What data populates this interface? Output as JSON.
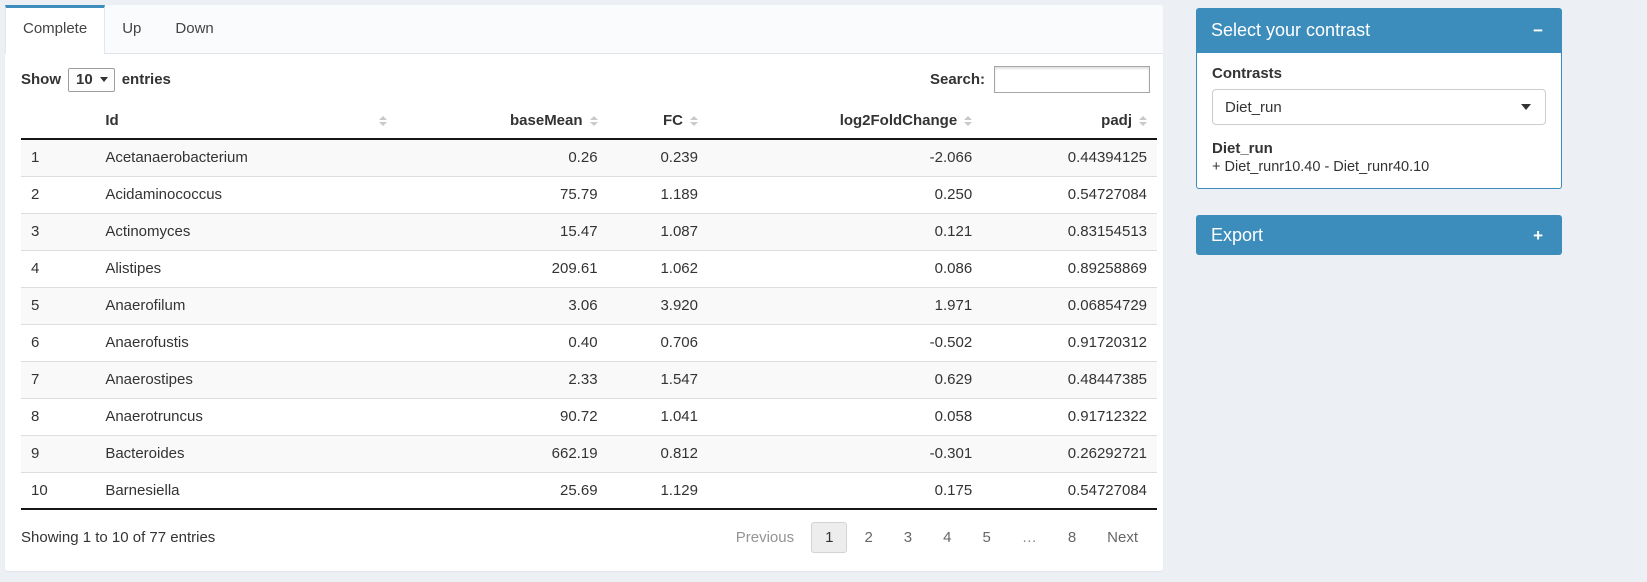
{
  "tabs": [
    {
      "label": "Complete",
      "active": true
    },
    {
      "label": "Up",
      "active": false
    },
    {
      "label": "Down",
      "active": false
    }
  ],
  "length_control": {
    "prefix": "Show",
    "value": "10",
    "suffix": "entries"
  },
  "search": {
    "label": "Search:",
    "value": ""
  },
  "table": {
    "columns": [
      "",
      "Id",
      "baseMean",
      "FC",
      "log2FoldChange",
      "padj"
    ],
    "rows": [
      [
        "1",
        "Acetanaerobacterium",
        "0.26",
        "0.239",
        "-2.066",
        "0.44394125"
      ],
      [
        "2",
        "Acidaminococcus",
        "75.79",
        "1.189",
        "0.250",
        "0.54727084"
      ],
      [
        "3",
        "Actinomyces",
        "15.47",
        "1.087",
        "0.121",
        "0.83154513"
      ],
      [
        "4",
        "Alistipes",
        "209.61",
        "1.062",
        "0.086",
        "0.89258869"
      ],
      [
        "5",
        "Anaerofilum",
        "3.06",
        "3.920",
        "1.971",
        "0.06854729"
      ],
      [
        "6",
        "Anaerofustis",
        "0.40",
        "0.706",
        "-0.502",
        "0.91720312"
      ],
      [
        "7",
        "Anaerostipes",
        "2.33",
        "1.547",
        "0.629",
        "0.48447385"
      ],
      [
        "8",
        "Anaerotruncus",
        "90.72",
        "1.041",
        "0.058",
        "0.91712322"
      ],
      [
        "9",
        "Bacteroides",
        "662.19",
        "0.812",
        "-0.301",
        "0.26292721"
      ],
      [
        "10",
        "Barnesiella",
        "25.69",
        "1.129",
        "0.175",
        "0.54727084"
      ]
    ]
  },
  "table_info": "Showing 1 to 10 of 77 entries",
  "pagination": {
    "previous": "Previous",
    "pages": [
      "1",
      "2",
      "3",
      "4",
      "5",
      "…",
      "8"
    ],
    "current": "1",
    "next": "Next"
  },
  "contrast_box": {
    "title": "Select your contrast",
    "collapse_icon": "−",
    "label": "Contrasts",
    "selected": "Diet_run",
    "detail_title": "Diet_run",
    "detail_text": "+ Diet_runr10.40 - Diet_runr40.10"
  },
  "export_box": {
    "title": "Export",
    "collapse_icon": "+"
  },
  "colors": {
    "primary": "#3c8dbc",
    "page_bg": "#ecf0f5"
  }
}
